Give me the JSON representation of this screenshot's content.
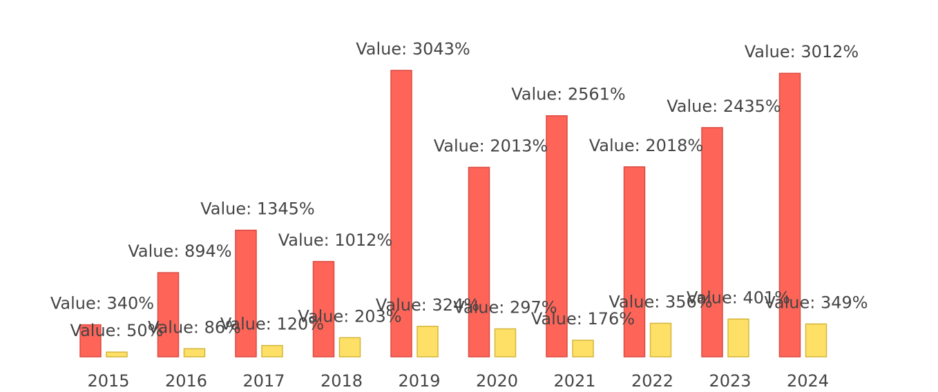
{
  "chart_data": {
    "type": "bar",
    "categories": [
      "2015",
      "2016",
      "2017",
      "2018",
      "2019",
      "2020",
      "2021",
      "2022",
      "2023",
      "2024"
    ],
    "series": [
      {
        "color": "#ff6459",
        "values": [
          340,
          894,
          1345,
          1012,
          3043,
          2013,
          2561,
          2018,
          2435,
          3012
        ],
        "value_labels": [
          "Value: 340%",
          "Value: 894%",
          "Value: 1345%",
          "Value: 1012%",
          "Value: 3043%",
          "Value: 2013%",
          "Value: 2561%",
          "Value: 2018%",
          "Value: 2435%",
          "Value: 3012%"
        ]
      },
      {
        "color": "#ffe066",
        "values": [
          50,
          86,
          120,
          203,
          324,
          297,
          176,
          356,
          401,
          349
        ],
        "value_labels": [
          "Value: 50%",
          "Value: 86%",
          "Value: 120%",
          "Value: 203%",
          "Value: 324%",
          "Value: 297%",
          "Value: 176%",
          "Value: 356%",
          "Value: 401%",
          "Value: 349%"
        ]
      }
    ]
  }
}
